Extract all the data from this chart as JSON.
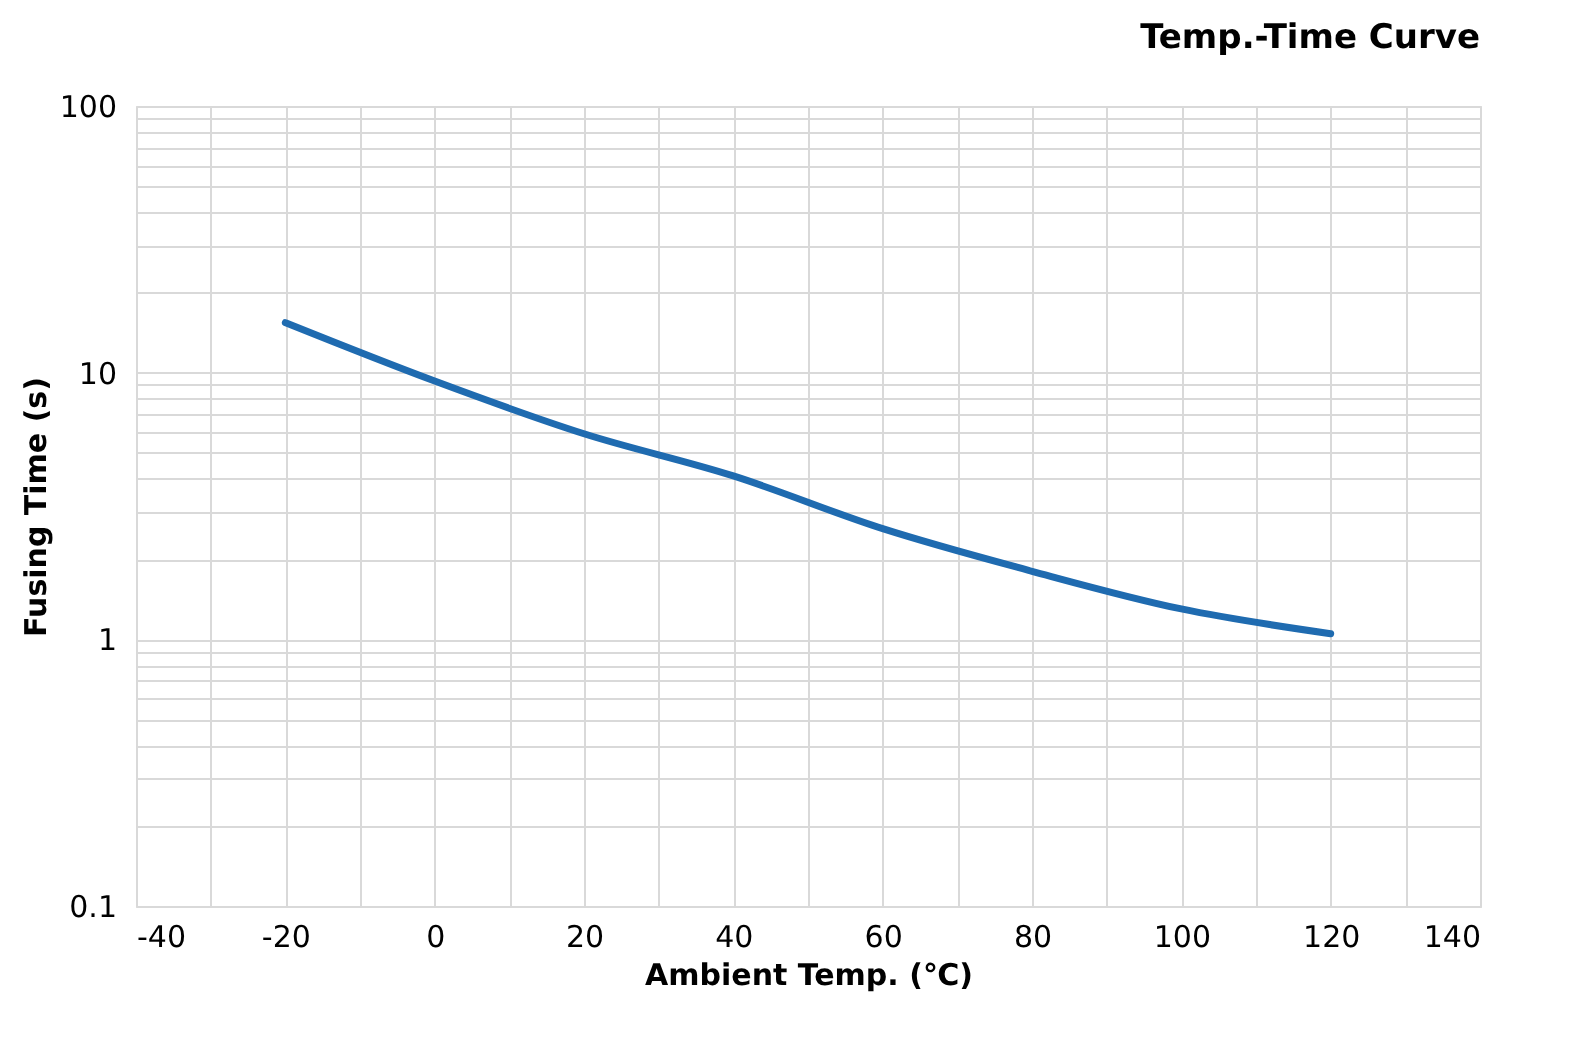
{
  "chart_data": {
    "type": "line",
    "title": "Temp.-Time Curve",
    "xlabel": "Ambient Temp. (℃)",
    "ylabel": "Fusing Time   (s)",
    "x": [
      -20,
      0,
      20,
      40,
      60,
      80,
      100,
      120
    ],
    "series": [
      {
        "color": "#1f6bb0",
        "values": [
          15.4,
          9.3,
          5.9,
          4.1,
          2.6,
          1.8,
          1.3,
          1.05
        ]
      }
    ],
    "xlim": [
      -40,
      140
    ],
    "ylim": [
      0.1,
      100
    ],
    "log": "y",
    "xticks": [
      -40,
      {
        "value": -30,
        "label": null
      },
      -20,
      {
        "value": -10,
        "label": null
      },
      0,
      {
        "value": 10,
        "label": null
      },
      20,
      {
        "value": 30,
        "label": null
      },
      40,
      {
        "value": 50,
        "label": null
      },
      60,
      {
        "value": 70,
        "label": null
      },
      80,
      {
        "value": 90,
        "label": null
      },
      100,
      {
        "value": 110,
        "label": null
      },
      120,
      {
        "value": 130,
        "label": null
      },
      140
    ],
    "yticks": [
      0.1,
      {
        "value": 0.2,
        "label": null
      },
      {
        "value": 0.3,
        "label": null
      },
      {
        "value": 0.4,
        "label": null
      },
      {
        "value": 0.5,
        "label": null
      },
      {
        "value": 0.6,
        "label": null
      },
      {
        "value": 0.7,
        "label": null
      },
      {
        "value": 0.8,
        "label": null
      },
      {
        "value": 0.9,
        "label": null
      },
      1,
      {
        "value": 2,
        "label": null
      },
      {
        "value": 3,
        "label": null
      },
      {
        "value": 4,
        "label": null
      },
      {
        "value": 5,
        "label": null
      },
      {
        "value": 6,
        "label": null
      },
      {
        "value": 7,
        "label": null
      },
      {
        "value": 8,
        "label": null
      },
      {
        "value": 9,
        "label": null
      },
      10,
      {
        "value": 20,
        "label": null
      },
      {
        "value": 30,
        "label": null
      },
      {
        "value": 40,
        "label": null
      },
      {
        "value": 50,
        "label": null
      },
      {
        "value": 60,
        "label": null
      },
      {
        "value": 70,
        "label": null
      },
      {
        "value": 80,
        "label": null
      },
      {
        "value": 90,
        "label": null
      },
      100
    ],
    "grid": true,
    "line_style": "solid",
    "marker": "none"
  }
}
